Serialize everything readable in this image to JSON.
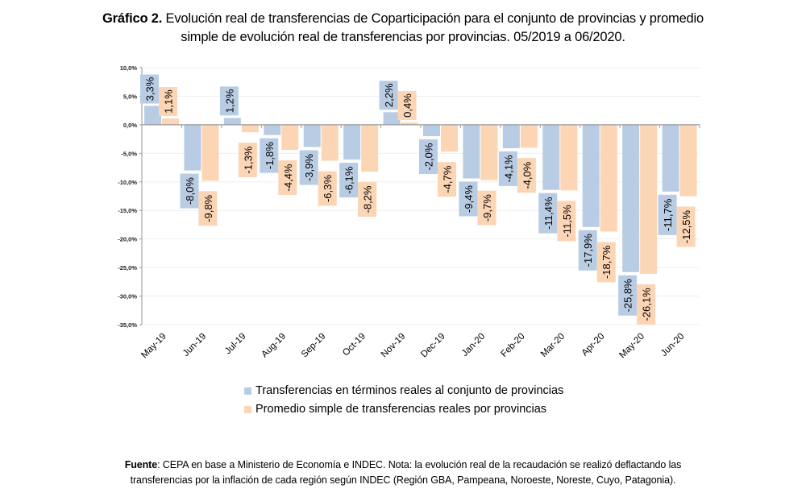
{
  "title": {
    "bold": "Gráfico 2.",
    "line1": " Evolución real de transferencias de Coparticipación para el conjunto de provincias y promedio",
    "line2": "simple de evolución real de transferencias por provincias. 05/2019 a 06/2020."
  },
  "chart_data": {
    "type": "bar",
    "title": "Gráfico 2. Evolución real de transferencias de Coparticipación para el conjunto de provincias y promedio simple de evolución real de transferencias por provincias. 05/2019 a 06/2020.",
    "xlabel": "",
    "ylabel": "",
    "ylim": [
      -35,
      10
    ],
    "yticks": [
      10,
      5,
      0,
      -5,
      -10,
      -15,
      -20,
      -25,
      -30,
      -35
    ],
    "ytick_labels": [
      "10,0%",
      "5,0%",
      "0,0%",
      "-5,0%",
      "-10,0%",
      "-15,0%",
      "-20,0%",
      "-25,0%",
      "-30,0%",
      "-35,0%"
    ],
    "grid": true,
    "legend_position": "bottom",
    "categories": [
      "May-19",
      "Jun-19",
      "Jul-19",
      "Aug-19",
      "Sep-19",
      "Oct-19",
      "Nov-19",
      "Dec-19",
      "Jan-20",
      "Feb-20",
      "Mar-20",
      "Apr-20",
      "May-20",
      "Jun-20"
    ],
    "series": [
      {
        "name": "Transferencias en términos reales al conjunto de provincias",
        "color": "#b8cce4",
        "values": [
          3.3,
          -8.0,
          1.2,
          -1.8,
          -3.9,
          -6.1,
          2.2,
          -2.0,
          -9.4,
          -4.1,
          -11.4,
          -17.9,
          -25.8,
          -11.7
        ],
        "labels": [
          "3,3%",
          "-8,0%",
          "1,2%",
          "-1,8%",
          "-3,9%",
          "-6,1%",
          "2,2%",
          "-2,0%",
          "-9,4%",
          "-4,1%",
          "-11,4%",
          "-17,9%",
          "-25,8%",
          "-11,7%"
        ]
      },
      {
        "name": "Promedio simple de transferencias reales por provincias",
        "color": "#fcd5b4",
        "values": [
          1.1,
          -9.8,
          -1.3,
          -4.4,
          -6.3,
          -8.2,
          0.4,
          -4.7,
          -9.7,
          -4.0,
          -11.5,
          -18.7,
          -26.1,
          -12.5
        ],
        "labels": [
          "1,1%",
          "-9,8%",
          "-1,3%",
          "-4,4%",
          "-6,3%",
          "-8,2%",
          "0,4%",
          "-4,7%",
          "-9,7%",
          "-4,0%",
          "-11,5%",
          "-18,7%",
          "-26,1%",
          "-12,5%"
        ]
      }
    ]
  },
  "legend": {
    "items": [
      {
        "label": "Transferencias en términos reales al conjunto de provincias",
        "color": "#b8cce4"
      },
      {
        "label": "Promedio simple de transferencias reales por provincias",
        "color": "#fcd5b4"
      }
    ]
  },
  "footer": {
    "bold": "Fuente",
    "line1": ": CEPA en base a Ministerio de Economía e INDEC. Nota: la evolución real de la recaudación se realizó deflactando las",
    "line2": "transferencias por la inflación de cada región según INDEC (Región GBA, Pampeana, Noroeste, Noreste, Cuyo, Patagonia)."
  }
}
